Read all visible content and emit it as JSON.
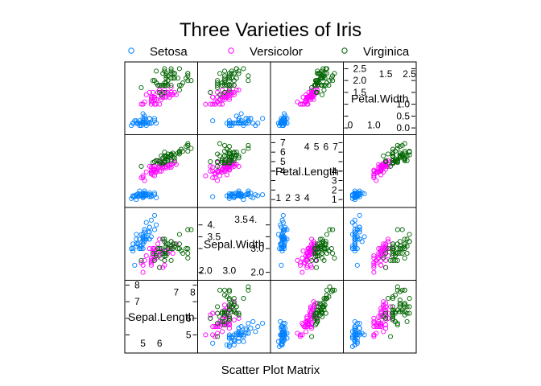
{
  "title": "Three Varieties of Iris",
  "xlabel": "Scatter Plot Matrix",
  "legend": [
    {
      "label": "Setosa",
      "color": "#0080ff"
    },
    {
      "label": "Versicolor",
      "color": "#ff00ff"
    },
    {
      "label": "Virginica",
      "color": "#006400"
    }
  ],
  "chart_data": {
    "type": "scatter",
    "subtype": "scatter-plot-matrix",
    "title": "Three Varieties of Iris",
    "xlabel": "Scatter Plot Matrix",
    "legend_position": "top",
    "marker": "circle-open",
    "variables": [
      {
        "name": "Sepal.Length",
        "range": [
          4.1,
          8.1
        ],
        "ticks_low": [
          "5",
          "6"
        ],
        "ticks_low_values": [
          5,
          6
        ],
        "ticks_high": [
          "7",
          "8"
        ],
        "ticks_high_values": [
          7,
          8
        ]
      },
      {
        "name": "Sepal.Width",
        "range": [
          1.8,
          4.6
        ],
        "ticks_low": [
          "2.0",
          "3.0"
        ],
        "ticks_low_values": [
          2.0,
          3.0
        ],
        "ticks_low_minor": [
          "2.5"
        ],
        "ticks_low_minor_values": [
          2.5
        ],
        "ticks_high": [
          "3.5",
          "4."
        ],
        "ticks_high_values": [
          3.5,
          4.0
        ],
        "ticks_high_minor": [
          "4.5"
        ],
        "ticks_high_minor_values": [
          4.5
        ]
      },
      {
        "name": "Petal.Length",
        "range": [
          0.5,
          7.5
        ],
        "ticks_low": [
          "1",
          "2",
          "3",
          "4"
        ],
        "ticks_low_values": [
          1,
          2,
          3,
          4
        ],
        "ticks_high": [
          "4",
          "5",
          "6",
          "7"
        ],
        "ticks_high_values": [
          4,
          5,
          6,
          7
        ]
      },
      {
        "name": "Petal.Width",
        "range": [
          -0.15,
          2.65
        ],
        "ticks_low": [
          "0.0",
          "0.5",
          "1.0"
        ],
        "ticks_low_values": [
          0.0,
          0.5,
          1.0
        ],
        "ticks_high": [
          "1.5",
          "2.0",
          "2.5"
        ],
        "ticks_high_values": [
          1.5,
          2.0,
          2.5
        ],
        "ticks_x_low": [
          "0",
          "1.0"
        ],
        "ticks_x_low_values": [
          0.0,
          1.0
        ],
        "ticks_x_high": [
          "1.5",
          "2.5"
        ],
        "ticks_x_high_values": [
          1.5,
          2.5
        ]
      }
    ],
    "series": [
      {
        "name": "Setosa",
        "color": "#0080ff",
        "points": [
          [
            5.1,
            3.5,
            1.4,
            0.2
          ],
          [
            4.9,
            3.0,
            1.4,
            0.2
          ],
          [
            4.7,
            3.2,
            1.3,
            0.2
          ],
          [
            4.6,
            3.1,
            1.5,
            0.2
          ],
          [
            5.0,
            3.6,
            1.4,
            0.2
          ],
          [
            5.4,
            3.9,
            1.7,
            0.4
          ],
          [
            4.6,
            3.4,
            1.4,
            0.3
          ],
          [
            5.0,
            3.4,
            1.5,
            0.2
          ],
          [
            4.4,
            2.9,
            1.4,
            0.2
          ],
          [
            4.9,
            3.1,
            1.5,
            0.1
          ],
          [
            5.4,
            3.7,
            1.5,
            0.2
          ],
          [
            4.8,
            3.4,
            1.6,
            0.2
          ],
          [
            4.8,
            3.0,
            1.4,
            0.1
          ],
          [
            4.3,
            3.0,
            1.1,
            0.1
          ],
          [
            5.8,
            4.0,
            1.2,
            0.2
          ],
          [
            5.7,
            4.4,
            1.5,
            0.4
          ],
          [
            5.4,
            3.9,
            1.3,
            0.4
          ],
          [
            5.1,
            3.5,
            1.4,
            0.3
          ],
          [
            5.7,
            3.8,
            1.7,
            0.3
          ],
          [
            5.1,
            3.8,
            1.5,
            0.3
          ],
          [
            5.4,
            3.4,
            1.7,
            0.2
          ],
          [
            5.1,
            3.7,
            1.5,
            0.4
          ],
          [
            4.6,
            3.6,
            1.0,
            0.2
          ],
          [
            5.1,
            3.3,
            1.7,
            0.5
          ],
          [
            4.8,
            3.4,
            1.9,
            0.2
          ],
          [
            5.0,
            3.0,
            1.6,
            0.2
          ],
          [
            5.0,
            3.4,
            1.6,
            0.4
          ],
          [
            5.2,
            3.5,
            1.5,
            0.2
          ],
          [
            5.2,
            3.4,
            1.4,
            0.2
          ],
          [
            4.7,
            3.2,
            1.6,
            0.2
          ],
          [
            4.8,
            3.1,
            1.6,
            0.2
          ],
          [
            5.4,
            3.4,
            1.5,
            0.4
          ],
          [
            5.2,
            4.1,
            1.5,
            0.1
          ],
          [
            5.5,
            4.2,
            1.4,
            0.2
          ],
          [
            4.9,
            3.1,
            1.5,
            0.2
          ],
          [
            5.0,
            3.2,
            1.2,
            0.2
          ],
          [
            5.5,
            3.5,
            1.3,
            0.2
          ],
          [
            4.9,
            3.6,
            1.4,
            0.1
          ],
          [
            4.4,
            3.0,
            1.3,
            0.2
          ],
          [
            5.1,
            3.4,
            1.5,
            0.2
          ],
          [
            5.0,
            3.5,
            1.3,
            0.3
          ],
          [
            4.5,
            2.3,
            1.3,
            0.3
          ],
          [
            4.4,
            3.2,
            1.3,
            0.2
          ],
          [
            5.0,
            3.5,
            1.6,
            0.6
          ],
          [
            5.1,
            3.8,
            1.9,
            0.4
          ],
          [
            4.8,
            3.0,
            1.4,
            0.3
          ],
          [
            5.1,
            3.8,
            1.6,
            0.2
          ],
          [
            4.6,
            3.2,
            1.4,
            0.2
          ],
          [
            5.3,
            3.7,
            1.5,
            0.2
          ],
          [
            5.0,
            3.3,
            1.4,
            0.2
          ]
        ]
      },
      {
        "name": "Versicolor",
        "color": "#ff00ff",
        "points": [
          [
            7.0,
            3.2,
            4.7,
            1.4
          ],
          [
            6.4,
            3.2,
            4.5,
            1.5
          ],
          [
            6.9,
            3.1,
            4.9,
            1.5
          ],
          [
            5.5,
            2.3,
            4.0,
            1.3
          ],
          [
            6.5,
            2.8,
            4.6,
            1.5
          ],
          [
            5.7,
            2.8,
            4.5,
            1.3
          ],
          [
            6.3,
            3.3,
            4.7,
            1.6
          ],
          [
            4.9,
            2.4,
            3.3,
            1.0
          ],
          [
            6.6,
            2.9,
            4.6,
            1.3
          ],
          [
            5.2,
            2.7,
            3.9,
            1.4
          ],
          [
            5.0,
            2.0,
            3.5,
            1.0
          ],
          [
            5.9,
            3.0,
            4.2,
            1.5
          ],
          [
            6.0,
            2.2,
            4.0,
            1.0
          ],
          [
            6.1,
            2.9,
            4.7,
            1.4
          ],
          [
            5.6,
            2.9,
            3.6,
            1.3
          ],
          [
            6.7,
            3.1,
            4.4,
            1.4
          ],
          [
            5.6,
            3.0,
            4.5,
            1.5
          ],
          [
            5.8,
            2.7,
            4.1,
            1.0
          ],
          [
            6.2,
            2.2,
            4.5,
            1.5
          ],
          [
            5.6,
            2.5,
            3.9,
            1.1
          ],
          [
            5.9,
            3.2,
            4.8,
            1.8
          ],
          [
            6.1,
            2.8,
            4.0,
            1.3
          ],
          [
            6.3,
            2.5,
            4.9,
            1.5
          ],
          [
            6.1,
            2.8,
            4.7,
            1.2
          ],
          [
            6.4,
            2.9,
            4.3,
            1.3
          ],
          [
            6.6,
            3.0,
            4.4,
            1.4
          ],
          [
            6.8,
            2.8,
            4.8,
            1.4
          ],
          [
            6.7,
            3.0,
            5.0,
            1.7
          ],
          [
            6.0,
            2.9,
            4.5,
            1.5
          ],
          [
            5.7,
            2.6,
            3.5,
            1.0
          ],
          [
            5.5,
            2.4,
            3.8,
            1.1
          ],
          [
            5.5,
            2.4,
            3.7,
            1.0
          ],
          [
            5.8,
            2.7,
            3.9,
            1.2
          ],
          [
            6.0,
            2.7,
            5.1,
            1.6
          ],
          [
            5.4,
            3.0,
            4.5,
            1.5
          ],
          [
            6.0,
            3.4,
            4.5,
            1.6
          ],
          [
            6.7,
            3.1,
            4.7,
            1.5
          ],
          [
            6.3,
            2.3,
            4.4,
            1.3
          ],
          [
            5.6,
            3.0,
            4.1,
            1.3
          ],
          [
            5.5,
            2.5,
            4.0,
            1.3
          ],
          [
            5.5,
            2.6,
            4.4,
            1.2
          ],
          [
            6.1,
            3.0,
            4.6,
            1.4
          ],
          [
            5.8,
            2.6,
            4.0,
            1.2
          ],
          [
            5.0,
            2.3,
            3.3,
            1.0
          ],
          [
            5.6,
            2.7,
            4.2,
            1.3
          ],
          [
            5.7,
            3.0,
            4.2,
            1.2
          ],
          [
            5.7,
            2.9,
            4.2,
            1.3
          ],
          [
            6.2,
            2.9,
            4.3,
            1.3
          ],
          [
            5.1,
            2.5,
            3.0,
            1.1
          ],
          [
            5.7,
            2.8,
            4.1,
            1.3
          ]
        ]
      },
      {
        "name": "Virginica",
        "color": "#006400",
        "points": [
          [
            6.3,
            3.3,
            6.0,
            2.5
          ],
          [
            5.8,
            2.7,
            5.1,
            1.9
          ],
          [
            7.1,
            3.0,
            5.9,
            2.1
          ],
          [
            6.3,
            2.9,
            5.6,
            1.8
          ],
          [
            6.5,
            3.0,
            5.8,
            2.2
          ],
          [
            7.6,
            3.0,
            6.6,
            2.1
          ],
          [
            4.9,
            2.5,
            4.5,
            1.7
          ],
          [
            7.3,
            2.9,
            6.3,
            1.8
          ],
          [
            6.7,
            2.5,
            5.8,
            1.8
          ],
          [
            7.2,
            3.6,
            6.1,
            2.5
          ],
          [
            6.5,
            3.2,
            5.1,
            2.0
          ],
          [
            6.4,
            2.7,
            5.3,
            1.9
          ],
          [
            6.8,
            3.0,
            5.5,
            2.1
          ],
          [
            5.7,
            2.5,
            5.0,
            2.0
          ],
          [
            5.8,
            2.8,
            5.1,
            2.4
          ],
          [
            6.4,
            3.2,
            5.3,
            2.3
          ],
          [
            6.5,
            3.0,
            5.5,
            1.8
          ],
          [
            7.7,
            3.8,
            6.7,
            2.2
          ],
          [
            7.7,
            2.6,
            6.9,
            2.3
          ],
          [
            6.0,
            2.2,
            5.0,
            1.5
          ],
          [
            6.9,
            3.2,
            5.7,
            2.3
          ],
          [
            5.6,
            2.8,
            4.9,
            2.0
          ],
          [
            7.7,
            2.8,
            6.7,
            2.0
          ],
          [
            6.3,
            2.7,
            4.9,
            1.8
          ],
          [
            6.7,
            3.3,
            5.7,
            2.1
          ],
          [
            7.2,
            3.2,
            6.0,
            1.8
          ],
          [
            6.2,
            2.8,
            4.8,
            1.8
          ],
          [
            6.1,
            3.0,
            4.9,
            1.8
          ],
          [
            6.4,
            2.8,
            5.6,
            2.1
          ],
          [
            7.2,
            3.0,
            5.8,
            1.6
          ],
          [
            7.4,
            2.8,
            6.1,
            1.9
          ],
          [
            7.9,
            3.8,
            6.4,
            2.0
          ],
          [
            6.4,
            2.8,
            5.6,
            2.2
          ],
          [
            6.3,
            2.8,
            5.1,
            1.5
          ],
          [
            6.1,
            2.6,
            5.6,
            1.4
          ],
          [
            7.7,
            3.0,
            6.1,
            2.3
          ],
          [
            6.3,
            3.4,
            5.6,
            2.4
          ],
          [
            6.4,
            3.1,
            5.5,
            1.8
          ],
          [
            6.0,
            3.0,
            4.8,
            1.8
          ],
          [
            6.9,
            3.1,
            5.4,
            2.1
          ],
          [
            6.7,
            3.1,
            5.6,
            2.4
          ],
          [
            6.9,
            3.1,
            5.1,
            2.3
          ],
          [
            5.8,
            2.7,
            5.1,
            1.9
          ],
          [
            6.8,
            3.2,
            5.9,
            2.3
          ],
          [
            6.7,
            3.3,
            5.7,
            2.5
          ],
          [
            6.7,
            3.0,
            5.2,
            2.3
          ],
          [
            6.3,
            2.5,
            5.0,
            1.9
          ],
          [
            6.5,
            3.0,
            5.2,
            2.0
          ],
          [
            6.2,
            3.4,
            5.4,
            2.3
          ],
          [
            5.9,
            3.0,
            5.1,
            1.8
          ]
        ]
      }
    ]
  }
}
